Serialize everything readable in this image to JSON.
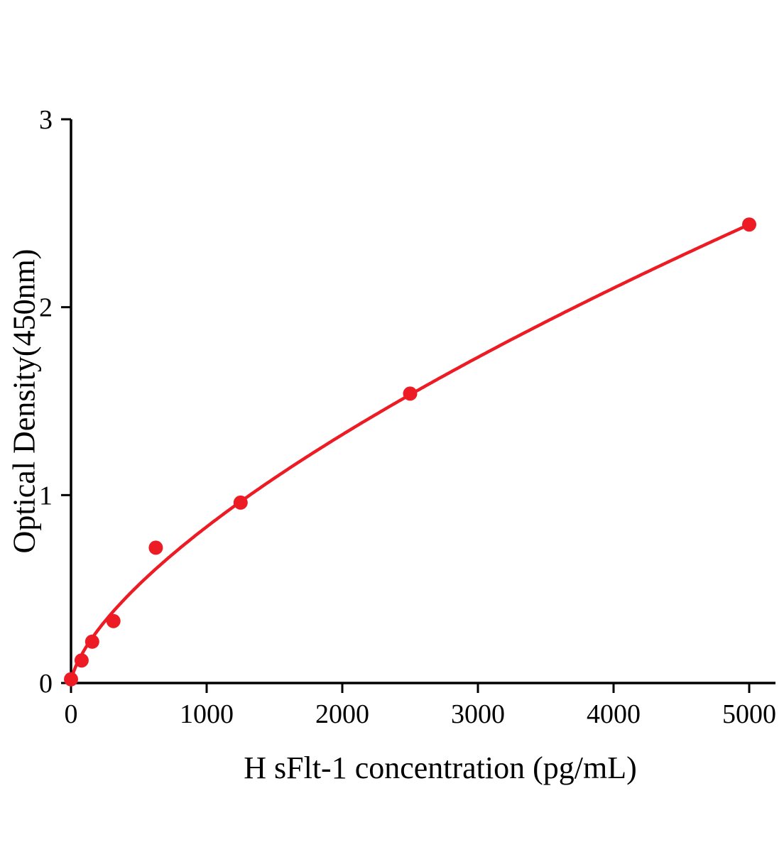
{
  "figure": {
    "background": "#ffffff"
  },
  "chart_data": {
    "type": "scatter",
    "title": "",
    "xlabel": "H sFlt-1 concentration (pg/mL)",
    "ylabel": "Optical Density(450nm)",
    "xlim": [
      0,
      5000
    ],
    "ylim": [
      0,
      3
    ],
    "xticks": [
      0,
      1000,
      2000,
      3000,
      4000,
      5000
    ],
    "yticks": [
      0,
      1,
      2,
      3
    ],
    "grid": false,
    "legend_position": "none",
    "axis_color": "#000000",
    "marker_color": "#ed1c24",
    "line_color": "#ed1c24",
    "points": [
      {
        "x": 0,
        "y": 0.02
      },
      {
        "x": 78.125,
        "y": 0.12
      },
      {
        "x": 156.25,
        "y": 0.22
      },
      {
        "x": 312.5,
        "y": 0.33
      },
      {
        "x": 625,
        "y": 0.72
      },
      {
        "x": 1250,
        "y": 0.96
      },
      {
        "x": 2500,
        "y": 1.54
      },
      {
        "x": 5000,
        "y": 2.44
      }
    ],
    "fit": {
      "type": "power",
      "a": 0.00818,
      "b": 0.669,
      "x_start": 0,
      "x_end": 5000
    }
  }
}
